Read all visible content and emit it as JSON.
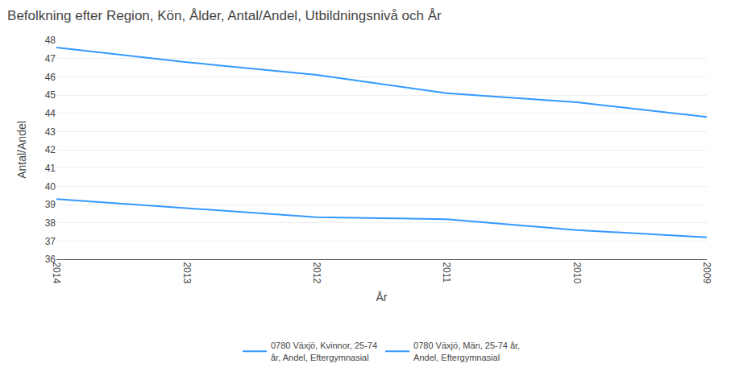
{
  "chart_data": {
    "type": "line",
    "title": "Befolkning efter Region, Kön, Ålder, Antal/Andel, Utbildningsnivå och År",
    "xlabel": "År",
    "ylabel": "Antal/Andel",
    "categories": [
      "2014",
      "2013",
      "2012",
      "2011",
      "2010",
      "2009"
    ],
    "series": [
      {
        "name": "0780 Växjö, Kvinnor, 25-74\når, Andel, Eftergymnasial",
        "color": "#3399ff",
        "line_style": "solid",
        "values": [
          47.6,
          46.8,
          46.1,
          45.1,
          44.6,
          43.8
        ]
      },
      {
        "name": "0780 Växjö, Män, 25-74 år,\nAndel, Eftergymnasial",
        "color": "#3399ff",
        "line_style": "solid",
        "values": [
          39.3,
          38.8,
          38.3,
          38.2,
          37.6,
          37.2
        ]
      }
    ],
    "ylim": [
      36,
      48
    ],
    "yticks": [
      36,
      37,
      38,
      39,
      40,
      41,
      42,
      43,
      44,
      45,
      46,
      47,
      48
    ],
    "grid": true,
    "legend": "bottom"
  }
}
